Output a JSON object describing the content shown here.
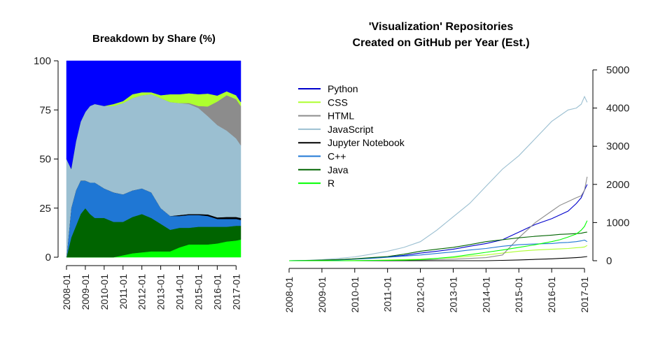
{
  "chart_data": [
    {
      "type": "area",
      "stacked": true,
      "title": "Breakdown by Share (%)",
      "xlabel": "",
      "ylabel": "",
      "ylim": [
        0,
        100
      ],
      "yticks": [
        "0",
        "25",
        "50",
        "75",
        "100"
      ],
      "xticks": [
        "2008-01",
        "2009-01",
        "2010-01",
        "2011-01",
        "2012-01",
        "2013-01",
        "2014-01",
        "2015-01",
        "2016-01",
        "2017-01"
      ],
      "x": [
        2008.0,
        2008.25,
        2008.5,
        2008.75,
        2009.0,
        2009.25,
        2009.5,
        2010.0,
        2010.5,
        2011.0,
        2011.5,
        2012.0,
        2012.5,
        2013.0,
        2013.5,
        2014.0,
        2014.5,
        2015.0,
        2015.5,
        2016.0,
        2016.5,
        2017.0,
        2017.25
      ],
      "series_order": [
        "R",
        "Java",
        "C++",
        "Jupyter Notebook",
        "JavaScript",
        "HTML",
        "CSS",
        "Python"
      ],
      "series": [
        {
          "name": "R",
          "color": "#00ff00",
          "values": [
            0,
            0,
            0,
            0,
            0,
            0,
            0,
            0,
            0,
            1,
            2,
            2.5,
            3,
            3,
            3,
            5,
            6.5,
            6.5,
            6.5,
            7,
            8,
            8.5,
            9
          ]
        },
        {
          "name": "Java",
          "color": "#006400",
          "values": [
            0,
            10,
            16,
            22,
            25,
            22,
            20,
            20,
            18,
            17,
            18.5,
            19.5,
            17,
            14,
            11,
            10,
            8.5,
            9,
            9,
            8.5,
            7.5,
            7.5,
            7
          ]
        },
        {
          "name": "C++",
          "color": "#1f77d4",
          "values": [
            0,
            15,
            18,
            17,
            14,
            16,
            18,
            15,
            15,
            14,
            13.5,
            13,
            13,
            8,
            7,
            6,
            6.5,
            6,
            5.5,
            4,
            4,
            3.5,
            3
          ]
        },
        {
          "name": "Jupyter Notebook",
          "color": "#000000",
          "values": [
            0,
            0,
            0,
            0,
            0,
            0,
            0,
            0,
            0,
            0,
            0,
            0,
            0,
            0,
            0,
            0.5,
            0.5,
            0.5,
            0.8,
            0.8,
            1,
            1,
            1
          ]
        },
        {
          "name": "JavaScript",
          "color": "#9bbfd1",
          "values": [
            50,
            20,
            25,
            30,
            35,
            39,
            40,
            42,
            44,
            46.5,
            47,
            47.5,
            50,
            56,
            58,
            57,
            56,
            54,
            50,
            47,
            44,
            40,
            37
          ]
        },
        {
          "name": "HTML",
          "color": "#8c8c8c",
          "values": [
            0,
            0,
            0,
            0,
            0,
            0,
            0,
            0,
            0,
            0,
            0,
            0,
            0,
            0,
            0,
            0,
            0.5,
            1,
            5,
            12,
            18,
            20,
            20
          ]
        },
        {
          "name": "CSS",
          "color": "#adff2f",
          "values": [
            0,
            0,
            0,
            0,
            0,
            0,
            0,
            0,
            1,
            1,
            2,
            1.5,
            1,
            1.5,
            4,
            4.5,
            5,
            6,
            6.5,
            3,
            2,
            2,
            2
          ]
        },
        {
          "name": "Python",
          "color": "#0000ff",
          "values": [
            50,
            55,
            41,
            31,
            26,
            23,
            22,
            23,
            22,
            20.5,
            17,
            16,
            16,
            17.5,
            17,
            17,
            16.5,
            17,
            16.7,
            17.7,
            15.5,
            17.5,
            21
          ]
        }
      ]
    },
    {
      "type": "line",
      "title": "'Visualization' Repositories",
      "subtitle": "Created on GitHub per Year (Est.)",
      "xlabel": "",
      "ylabel": "",
      "ylim": [
        0,
        5000
      ],
      "yticks": [
        "0",
        "1000",
        "2000",
        "3000",
        "4000",
        "5000"
      ],
      "xticks": [
        "2008-01",
        "2009-01",
        "2010-01",
        "2011-01",
        "2012-01",
        "2013-01",
        "2014-01",
        "2015-01",
        "2016-01",
        "2017-01"
      ],
      "legend_position": "top-left",
      "x": [
        2008.0,
        2008.5,
        2009.0,
        2009.5,
        2010.0,
        2010.5,
        2011.0,
        2011.5,
        2012.0,
        2012.5,
        2013.0,
        2013.5,
        2014.0,
        2014.5,
        2015.0,
        2015.5,
        2016.0,
        2016.25,
        2016.5,
        2016.75,
        2016.9,
        2017.0,
        2017.08
      ],
      "series": [
        {
          "name": "Python",
          "color": "#0000cc",
          "values": [
            0,
            5,
            10,
            25,
            50,
            70,
            100,
            140,
            200,
            250,
            300,
            380,
            450,
            550,
            750,
            950,
            1100,
            1200,
            1300,
            1500,
            1650,
            1850,
            2000
          ]
        },
        {
          "name": "CSS",
          "color": "#adff2f",
          "values": [
            0,
            0,
            0,
            0,
            5,
            10,
            20,
            30,
            40,
            60,
            80,
            120,
            150,
            200,
            250,
            280,
            300,
            310,
            320,
            340,
            350,
            360,
            400
          ]
        },
        {
          "name": "HTML",
          "color": "#8c8c8c",
          "values": [
            0,
            0,
            0,
            0,
            0,
            5,
            10,
            15,
            20,
            30,
            40,
            60,
            80,
            150,
            600,
            1000,
            1300,
            1450,
            1550,
            1650,
            1700,
            1850,
            2200
          ]
        },
        {
          "name": "JavaScript",
          "color": "#9bbfd1",
          "values": [
            0,
            10,
            30,
            60,
            100,
            170,
            250,
            350,
            500,
            800,
            1150,
            1500,
            1950,
            2400,
            2750,
            3200,
            3650,
            3800,
            3950,
            4000,
            4100,
            4300,
            4150
          ]
        },
        {
          "name": "Jupyter Notebook",
          "color": "#000000",
          "values": [
            0,
            0,
            0,
            0,
            0,
            0,
            0,
            0,
            0,
            0,
            0,
            0,
            0,
            10,
            20,
            35,
            50,
            60,
            70,
            80,
            90,
            100,
            110
          ]
        },
        {
          "name": "C++",
          "color": "#1f77d4",
          "values": [
            0,
            5,
            10,
            20,
            40,
            60,
            90,
            120,
            150,
            190,
            230,
            280,
            320,
            380,
            420,
            440,
            450,
            470,
            480,
            500,
            520,
            540,
            500
          ]
        },
        {
          "name": "Java",
          "color": "#006400",
          "values": [
            0,
            5,
            15,
            30,
            50,
            80,
            110,
            170,
            250,
            300,
            350,
            420,
            500,
            550,
            600,
            640,
            670,
            690,
            700,
            710,
            720,
            740,
            750
          ]
        },
        {
          "name": "R",
          "color": "#00ff00",
          "values": [
            0,
            0,
            0,
            0,
            0,
            5,
            10,
            15,
            30,
            60,
            100,
            160,
            220,
            280,
            350,
            420,
            500,
            550,
            620,
            700,
            800,
            900,
            1050
          ]
        }
      ]
    }
  ]
}
